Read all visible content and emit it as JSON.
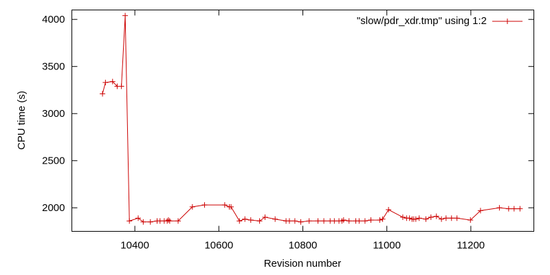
{
  "chart_data": {
    "type": "line",
    "xlabel": "Revision number",
    "ylabel": "CPU time (s)",
    "xlim": [
      10250,
      11350
    ],
    "ylim": [
      1750,
      4100
    ],
    "xticks": [
      10400,
      10600,
      10800,
      11000,
      11200
    ],
    "yticks": [
      2000,
      2500,
      3000,
      3500,
      4000
    ],
    "legend_placement": "top-right",
    "grid": false,
    "series": [
      {
        "name": "\"slow/pdr_xdr.tmp\" using 1:2",
        "color": "#cc0000",
        "marker": "plus",
        "x": [
          10323,
          10330,
          10347,
          10358,
          10368,
          10377,
          10387,
          10408,
          10420,
          10437,
          10453,
          10460,
          10470,
          10477,
          10480,
          10483,
          10503,
          10537,
          10566,
          10614,
          10625,
          10629,
          10649,
          10662,
          10676,
          10697,
          10710,
          10734,
          10760,
          10768,
          10781,
          10795,
          10815,
          10836,
          10850,
          10865,
          10875,
          10886,
          10893,
          10897,
          10910,
          10926,
          10934,
          10948,
          10962,
          10983,
          10990,
          11004,
          11038,
          11047,
          11054,
          11060,
          11064,
          11069,
          11077,
          11093,
          11105,
          11118,
          11130,
          11141,
          11154,
          11167,
          11199,
          11223,
          11268,
          11290,
          11303,
          11317
        ],
        "y": [
          3210,
          3330,
          3340,
          3290,
          3290,
          4040,
          1860,
          1890,
          1850,
          1850,
          1860,
          1860,
          1860,
          1860,
          1870,
          1860,
          1860,
          2010,
          2030,
          2030,
          2010,
          2010,
          1860,
          1880,
          1870,
          1860,
          1900,
          1880,
          1860,
          1860,
          1860,
          1850,
          1860,
          1860,
          1860,
          1860,
          1860,
          1860,
          1860,
          1870,
          1860,
          1860,
          1860,
          1860,
          1870,
          1870,
          1880,
          1980,
          1900,
          1890,
          1890,
          1880,
          1880,
          1880,
          1890,
          1880,
          1900,
          1910,
          1880,
          1890,
          1890,
          1890,
          1870,
          1970,
          2000,
          1990,
          1990,
          1990
        ]
      }
    ]
  }
}
